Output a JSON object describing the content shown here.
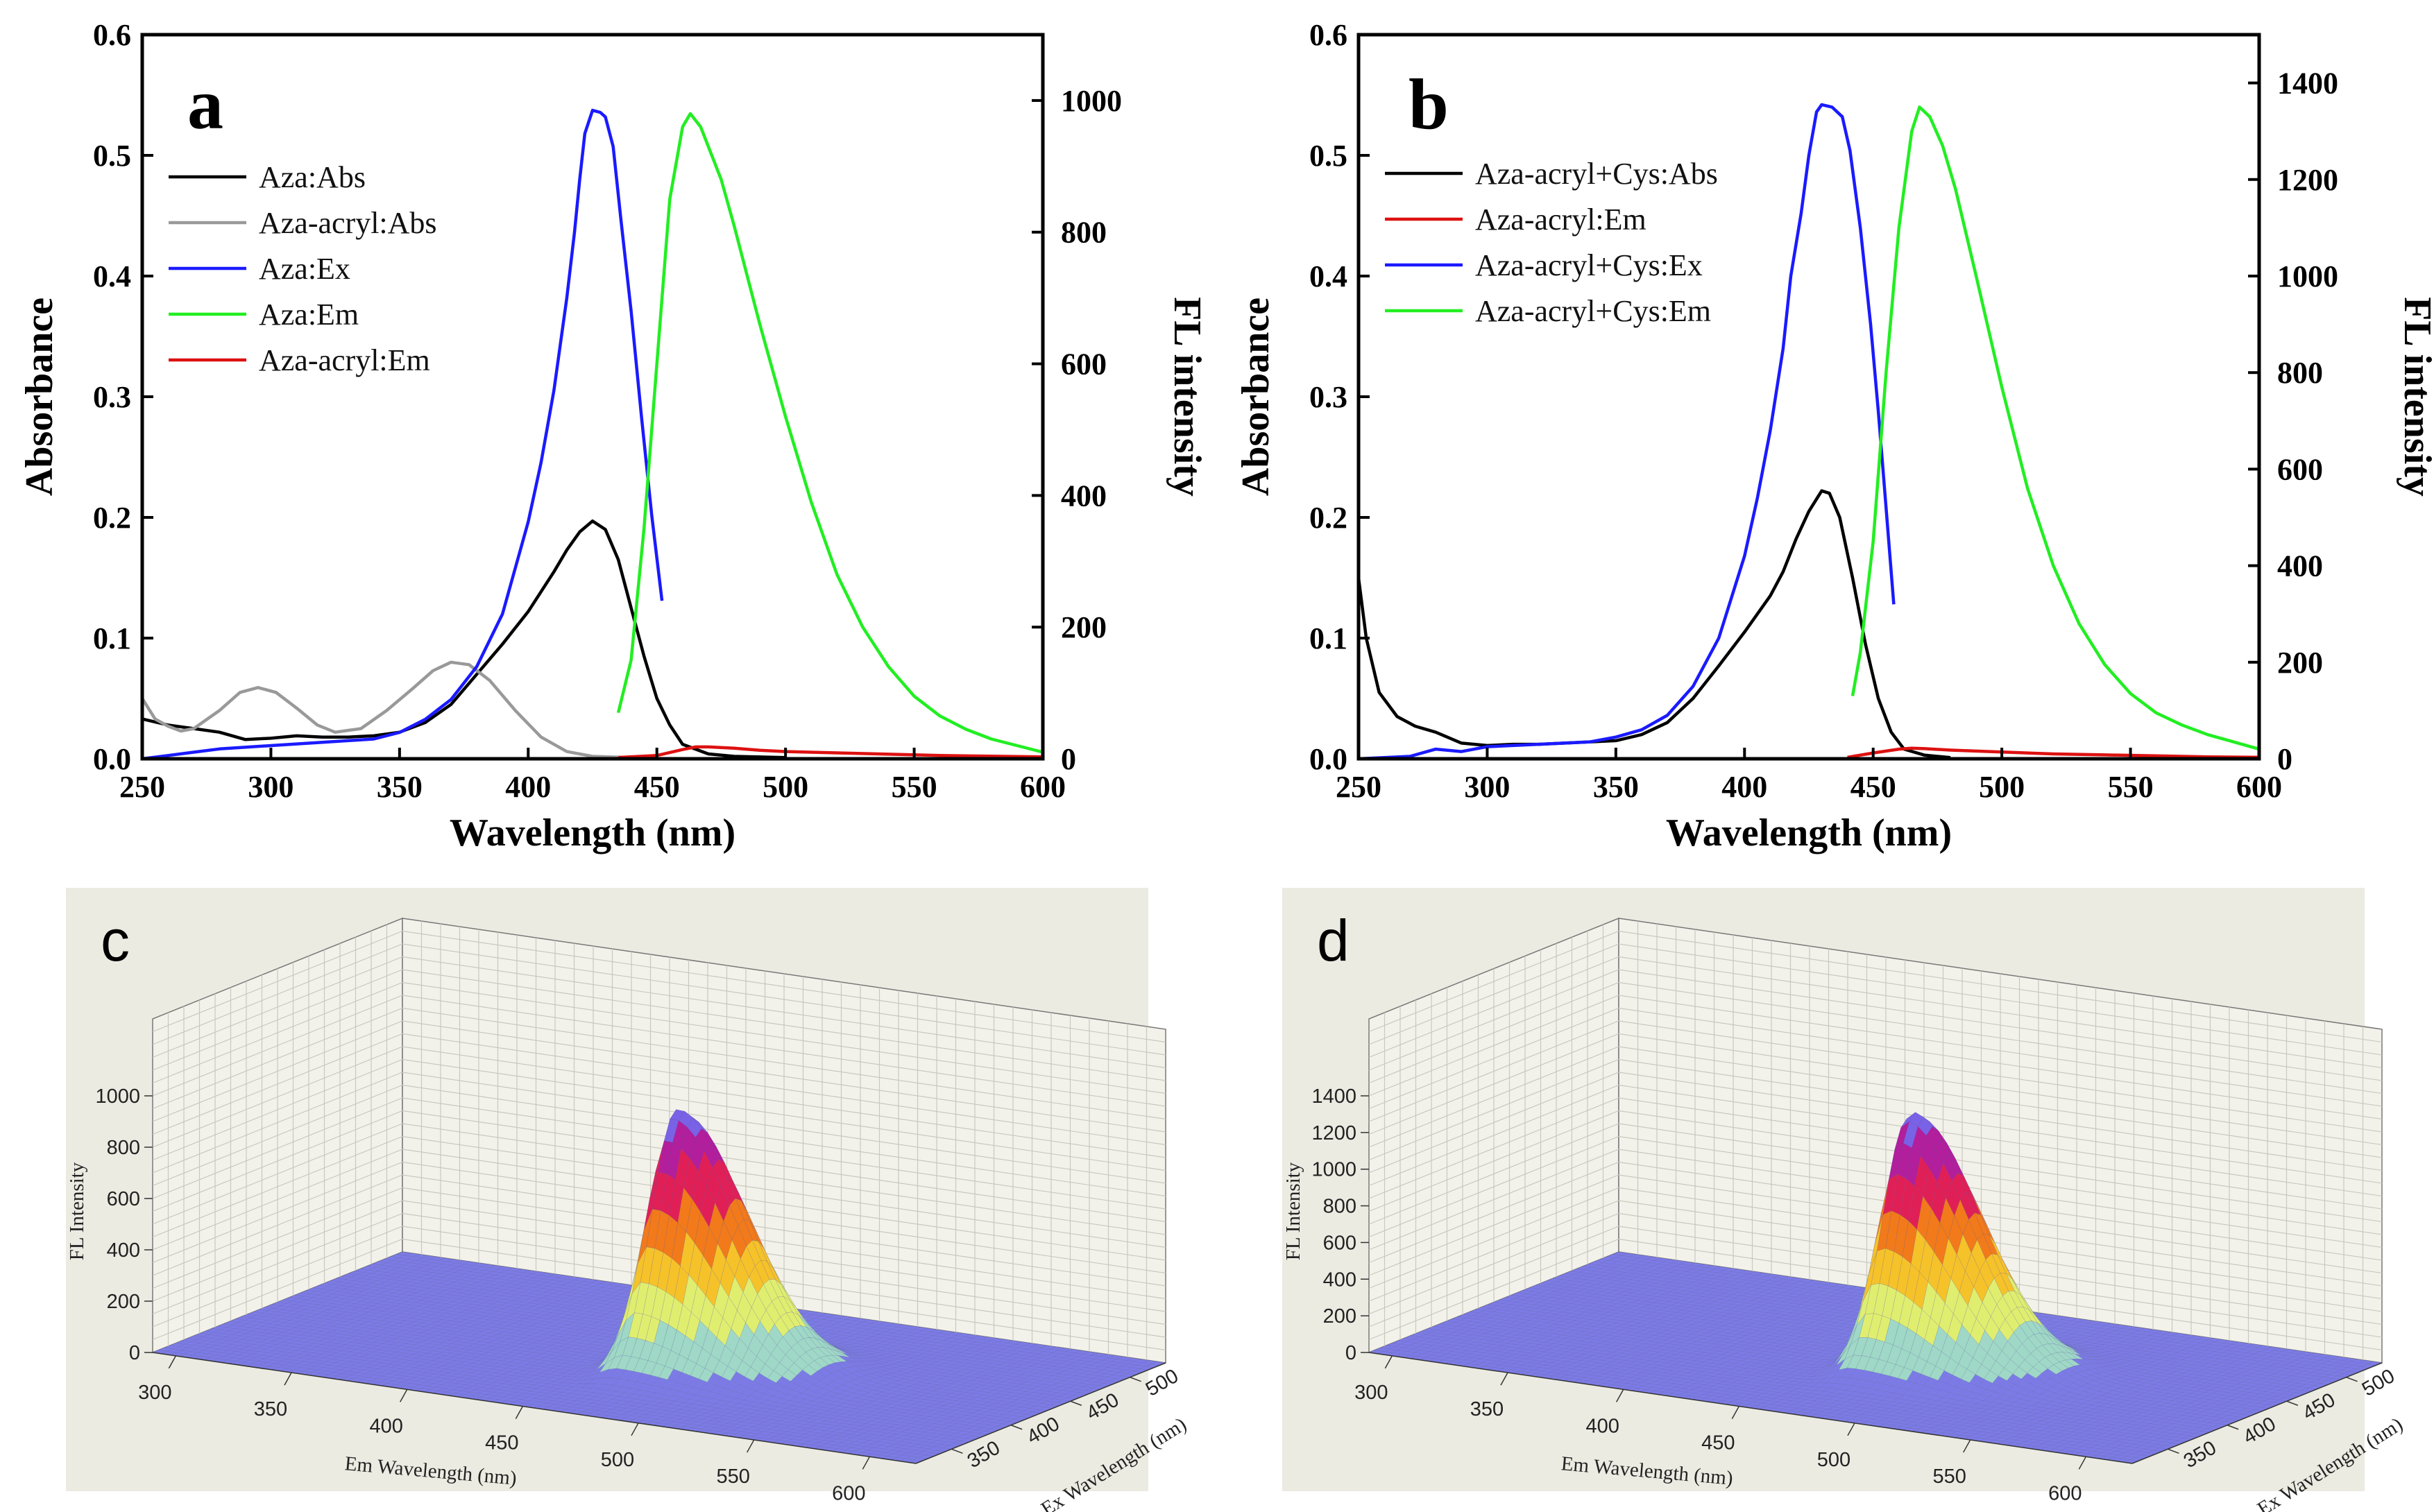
{
  "chart_data": [
    {
      "panel": "a",
      "type": "line",
      "xlabel": "Wavelength (nm)",
      "ylabel": "Absorbance",
      "y2label": "FL intensity",
      "xlim": [
        250,
        600
      ],
      "ylim": [
        0,
        0.6
      ],
      "y2lim": [
        0,
        1100
      ],
      "xticks": [
        250,
        300,
        350,
        400,
        450,
        500,
        550,
        600
      ],
      "yticks": [
        "0.0",
        "0.1",
        "0.2",
        "0.3",
        "0.4",
        "0.5",
        "0.6"
      ],
      "y2ticks": [
        0,
        200,
        400,
        600,
        800,
        1000
      ],
      "legend_position": "top-left",
      "series": [
        {
          "name": "Aza:Abs",
          "color": "#000000",
          "axis": "left",
          "points": [
            [
              250,
              0.033
            ],
            [
              260,
              0.028
            ],
            [
              270,
              0.025
            ],
            [
              280,
              0.022
            ],
            [
              290,
              0.016
            ],
            [
              300,
              0.017
            ],
            [
              310,
              0.019
            ],
            [
              320,
              0.018
            ],
            [
              330,
              0.018
            ],
            [
              340,
              0.019
            ],
            [
              350,
              0.022
            ],
            [
              360,
              0.03
            ],
            [
              370,
              0.045
            ],
            [
              380,
              0.07
            ],
            [
              390,
              0.095
            ],
            [
              400,
              0.122
            ],
            [
              410,
              0.155
            ],
            [
              415,
              0.173
            ],
            [
              420,
              0.188
            ],
            [
              425,
              0.197
            ],
            [
              430,
              0.19
            ],
            [
              435,
              0.165
            ],
            [
              440,
              0.125
            ],
            [
              445,
              0.085
            ],
            [
              450,
              0.05
            ],
            [
              455,
              0.028
            ],
            [
              460,
              0.012
            ],
            [
              470,
              0.004
            ],
            [
              480,
              0.002
            ],
            [
              500,
              0.001
            ]
          ]
        },
        {
          "name": "Aza-acryl:Abs",
          "color": "#999999",
          "axis": "left",
          "points": [
            [
              250,
              0.05
            ],
            [
              255,
              0.033
            ],
            [
              260,
              0.027
            ],
            [
              265,
              0.023
            ],
            [
              270,
              0.025
            ],
            [
              280,
              0.04
            ],
            [
              288,
              0.055
            ],
            [
              295,
              0.059
            ],
            [
              302,
              0.055
            ],
            [
              310,
              0.042
            ],
            [
              318,
              0.028
            ],
            [
              325,
              0.022
            ],
            [
              335,
              0.025
            ],
            [
              345,
              0.04
            ],
            [
              355,
              0.058
            ],
            [
              363,
              0.073
            ],
            [
              370,
              0.08
            ],
            [
              377,
              0.078
            ],
            [
              385,
              0.065
            ],
            [
              395,
              0.04
            ],
            [
              405,
              0.018
            ],
            [
              415,
              0.006
            ],
            [
              425,
              0.002
            ],
            [
              440,
              0.001
            ]
          ]
        },
        {
          "name": "Aza:Ex",
          "color": "#1a1aff",
          "axis": "right",
          "points": [
            [
              250,
              0
            ],
            [
              260,
              5
            ],
            [
              270,
              10
            ],
            [
              280,
              15
            ],
            [
              300,
              20
            ],
            [
              320,
              25
            ],
            [
              340,
              30
            ],
            [
              350,
              40
            ],
            [
              360,
              60
            ],
            [
              370,
              90
            ],
            [
              380,
              140
            ],
            [
              390,
              220
            ],
            [
              400,
              360
            ],
            [
              405,
              450
            ],
            [
              410,
              560
            ],
            [
              415,
              700
            ],
            [
              418,
              800
            ],
            [
              420,
              880
            ],
            [
              422,
              950
            ],
            [
              425,
              985
            ],
            [
              428,
              982
            ],
            [
              430,
              975
            ],
            [
              433,
              930
            ],
            [
              436,
              820
            ],
            [
              440,
              680
            ],
            [
              444,
              520
            ],
            [
              448,
              370
            ],
            [
              452,
              240
            ]
          ]
        },
        {
          "name": "Aza:Em",
          "color": "#22ee22",
          "axis": "right",
          "points": [
            [
              435,
              70
            ],
            [
              440,
              150
            ],
            [
              445,
              350
            ],
            [
              450,
              600
            ],
            [
              455,
              850
            ],
            [
              460,
              960
            ],
            [
              463,
              980
            ],
            [
              467,
              960
            ],
            [
              470,
              930
            ],
            [
              475,
              880
            ],
            [
              480,
              810
            ],
            [
              490,
              660
            ],
            [
              500,
              520
            ],
            [
              510,
              390
            ],
            [
              520,
              280
            ],
            [
              530,
              200
            ],
            [
              540,
              140
            ],
            [
              550,
              95
            ],
            [
              560,
              65
            ],
            [
              570,
              45
            ],
            [
              580,
              30
            ],
            [
              590,
              20
            ],
            [
              600,
              10
            ]
          ]
        },
        {
          "name": "Aza-acryl:Em",
          "color": "#dd1111",
          "axis": "right",
          "points": [
            [
              435,
              2
            ],
            [
              450,
              5
            ],
            [
              460,
              14
            ],
            [
              465,
              18
            ],
            [
              470,
              18
            ],
            [
              480,
              16
            ],
            [
              490,
              13
            ],
            [
              500,
              11
            ],
            [
              520,
              9
            ],
            [
              540,
              7
            ],
            [
              560,
              5
            ],
            [
              580,
              4
            ],
            [
              600,
              3
            ]
          ]
        }
      ]
    },
    {
      "panel": "b",
      "type": "line",
      "xlabel": "Wavelength (nm)",
      "ylabel": "Absorbance",
      "y2label": "FL intensity",
      "xlim": [
        250,
        600
      ],
      "ylim": [
        0,
        0.6
      ],
      "y2lim": [
        0,
        1500
      ],
      "xticks": [
        250,
        300,
        350,
        400,
        450,
        500,
        550,
        600
      ],
      "yticks": [
        "0.0",
        "0.1",
        "0.2",
        "0.3",
        "0.4",
        "0.5",
        "0.6"
      ],
      "y2ticks": [
        0,
        200,
        400,
        600,
        800,
        1000,
        1200,
        1400
      ],
      "legend_position": "top-left",
      "series": [
        {
          "name": "Aza-acryl+Cys:Abs",
          "color": "#000000",
          "axis": "left",
          "points": [
            [
              250,
              0.15
            ],
            [
              253,
              0.1
            ],
            [
              258,
              0.055
            ],
            [
              265,
              0.035
            ],
            [
              272,
              0.027
            ],
            [
              280,
              0.022
            ],
            [
              290,
              0.013
            ],
            [
              300,
              0.011
            ],
            [
              310,
              0.012
            ],
            [
              320,
              0.012
            ],
            [
              330,
              0.013
            ],
            [
              340,
              0.014
            ],
            [
              350,
              0.015
            ],
            [
              360,
              0.02
            ],
            [
              370,
              0.03
            ],
            [
              380,
              0.05
            ],
            [
              390,
              0.077
            ],
            [
              400,
              0.105
            ],
            [
              410,
              0.135
            ],
            [
              415,
              0.155
            ],
            [
              420,
              0.182
            ],
            [
              425,
              0.205
            ],
            [
              430,
              0.222
            ],
            [
              433,
              0.22
            ],
            [
              437,
              0.2
            ],
            [
              442,
              0.15
            ],
            [
              447,
              0.095
            ],
            [
              452,
              0.05
            ],
            [
              457,
              0.022
            ],
            [
              462,
              0.008
            ],
            [
              470,
              0.003
            ],
            [
              480,
              0.001
            ]
          ]
        },
        {
          "name": "Aza-acryl:Em",
          "color": "#dd1111",
          "axis": "right",
          "points": [
            [
              440,
              3
            ],
            [
              450,
              12
            ],
            [
              460,
              20
            ],
            [
              465,
              22
            ],
            [
              470,
              21
            ],
            [
              480,
              18
            ],
            [
              500,
              14
            ],
            [
              520,
              10
            ],
            [
              540,
              8
            ],
            [
              560,
              6
            ],
            [
              580,
              4
            ],
            [
              600,
              3
            ]
          ]
        },
        {
          "name": "Aza-acryl+Cys:Ex",
          "color": "#1a1aff",
          "axis": "right",
          "points": [
            [
              250,
              0
            ],
            [
              270,
              5
            ],
            [
              280,
              20
            ],
            [
              290,
              15
            ],
            [
              300,
              25
            ],
            [
              320,
              30
            ],
            [
              340,
              35
            ],
            [
              350,
              45
            ],
            [
              360,
              60
            ],
            [
              370,
              90
            ],
            [
              380,
              150
            ],
            [
              390,
              250
            ],
            [
              400,
              420
            ],
            [
              405,
              540
            ],
            [
              410,
              680
            ],
            [
              415,
              850
            ],
            [
              418,
              1000
            ],
            [
              422,
              1130
            ],
            [
              425,
              1250
            ],
            [
              428,
              1340
            ],
            [
              430,
              1355
            ],
            [
              434,
              1350
            ],
            [
              438,
              1330
            ],
            [
              441,
              1260
            ],
            [
              445,
              1100
            ],
            [
              449,
              900
            ],
            [
              452,
              720
            ],
            [
              455,
              520
            ],
            [
              458,
              320
            ]
          ]
        },
        {
          "name": "Aza-acryl+Cys:Em",
          "color": "#22ee22",
          "axis": "right",
          "points": [
            [
              442,
              130
            ],
            [
              445,
              220
            ],
            [
              450,
              450
            ],
            [
              455,
              800
            ],
            [
              460,
              1100
            ],
            [
              465,
              1300
            ],
            [
              468,
              1350
            ],
            [
              472,
              1330
            ],
            [
              477,
              1270
            ],
            [
              482,
              1180
            ],
            [
              490,
              1000
            ],
            [
              500,
              770
            ],
            [
              510,
              560
            ],
            [
              520,
              400
            ],
            [
              530,
              280
            ],
            [
              540,
              195
            ],
            [
              550,
              135
            ],
            [
              560,
              95
            ],
            [
              570,
              70
            ],
            [
              580,
              50
            ],
            [
              590,
              35
            ],
            [
              600,
              20
            ]
          ]
        }
      ]
    },
    {
      "panel": "c",
      "type": "surface3d",
      "zlabel": "FL Intensity",
      "xlabel": "Em Wavelength (nm)",
      "ylabel": "Ex Wavelength (nm)",
      "zticks": [
        0,
        200,
        400,
        600,
        800,
        1000
      ],
      "xticks": [
        300,
        350,
        400,
        450,
        500,
        550,
        600
      ],
      "yticks": [
        350,
        400,
        450,
        500
      ],
      "peak": {
        "em": 463,
        "ex": 425,
        "intensity": 980
      }
    },
    {
      "panel": "d",
      "type": "surface3d",
      "zlabel": "FL Intensity",
      "xlabel": "Em Wavelength (nm)",
      "ylabel": "Ex Wavelength (nm)",
      "zticks": [
        0,
        200,
        400,
        600,
        800,
        1000,
        1200,
        1400
      ],
      "xticks": [
        300,
        350,
        400,
        450,
        500,
        550,
        600
      ],
      "yticks": [
        350,
        400,
        450,
        500
      ],
      "peak": {
        "em": 468,
        "ex": 430,
        "intensity": 1355
      }
    }
  ]
}
